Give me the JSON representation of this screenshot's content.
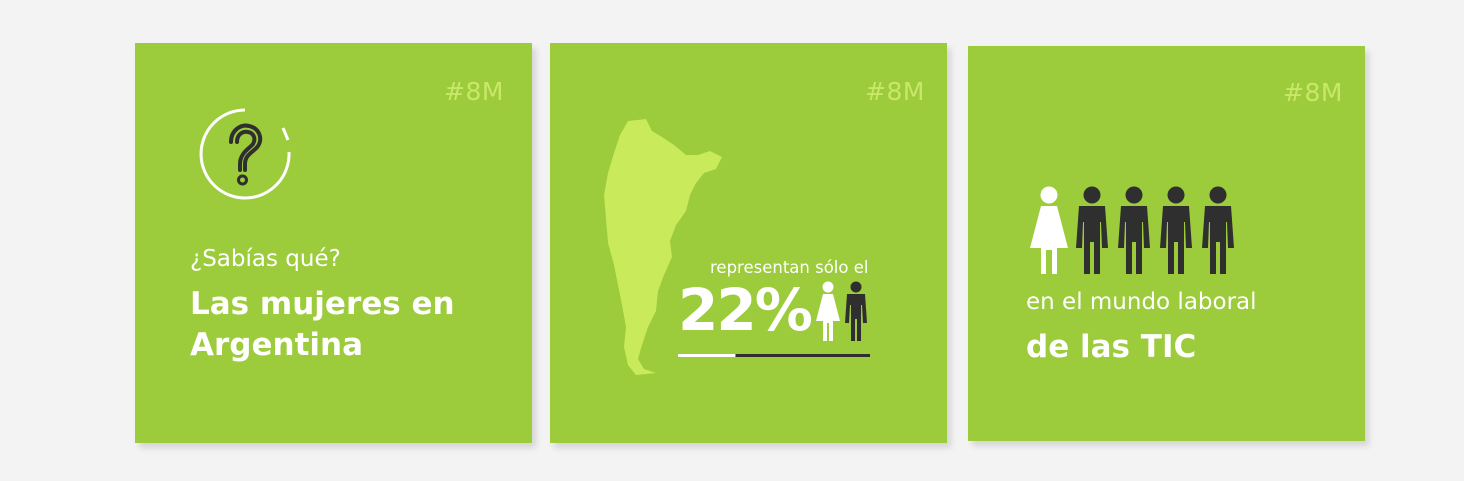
{
  "cards": [
    {
      "tag": "#8M",
      "intro": "¿Sabías qué?",
      "title_line1": "Las mujeres en",
      "title_line2": "Argentina",
      "icon": "question-circle-icon"
    },
    {
      "tag": "#8M",
      "subtitle": "representan sólo el",
      "percent": "22%",
      "women_share": 0.22,
      "icon": "argentina-map-icon"
    },
    {
      "tag": "#8M",
      "line1": "en el mundo laboral",
      "line2": "de las TIC",
      "icon": "people-icon"
    }
  ],
  "colors": {
    "card_bg": "#9ccb3b",
    "map": "#c8ea5b",
    "tag": "#c9e86a",
    "dark": "#2f2f2f",
    "white": "#ffffff"
  }
}
